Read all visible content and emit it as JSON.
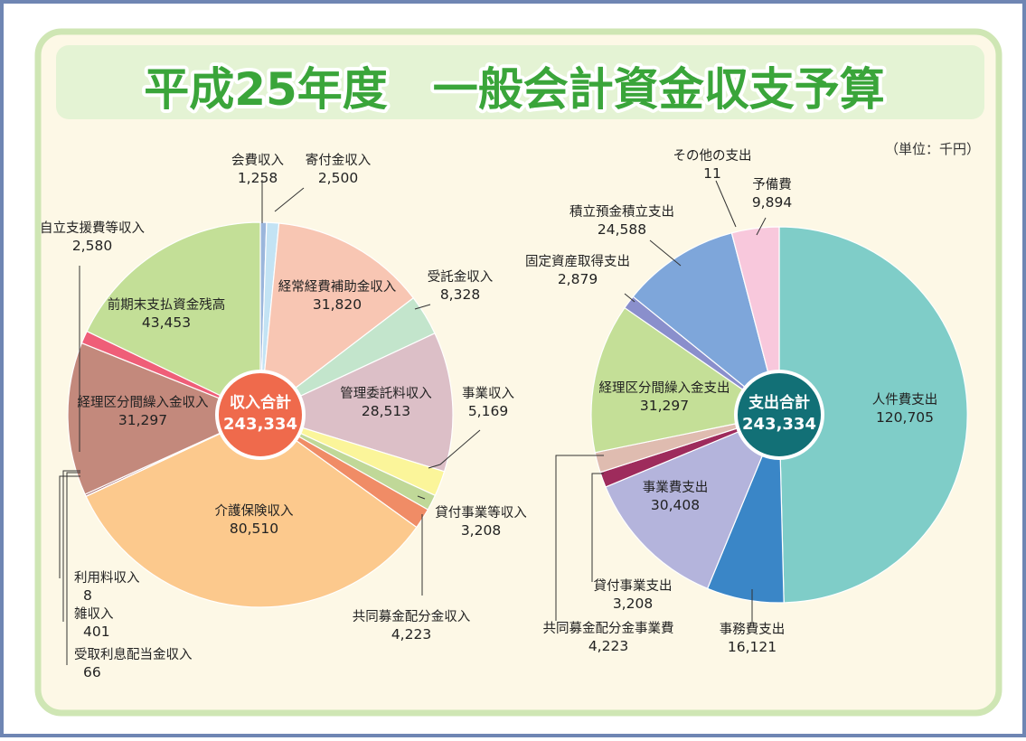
{
  "title": "平成25年度　一般会計資金収支予算",
  "unit": "（単位：千円）",
  "colors": {
    "panel_bg": "#fdf8e6",
    "panel_border": "#cfe6b4",
    "title_bar": "#e4f3d4",
    "title_text": "#3aa53a",
    "income_center": "#ef6a4c",
    "expense_center": "#127076"
  },
  "chart_data": [
    {
      "type": "pie",
      "id": "income",
      "center_label": "収入合計",
      "center_value": "243,334",
      "slices": [
        {
          "label": "会費収入",
          "value": 1258,
          "display": "1,258",
          "color": "#9bb6dc"
        },
        {
          "label": "寄付金収入",
          "value": 2500,
          "display": "2,500",
          "color": "#c3e3f4"
        },
        {
          "label": "経常経費補助金収入",
          "value": 31820,
          "display": "31,820",
          "color": "#f8c6b3"
        },
        {
          "label": "受託金収入",
          "value": 8328,
          "display": "8,328",
          "color": "#c3e5cc"
        },
        {
          "label": "管理委託料収入",
          "value": 28513,
          "display": "28,513",
          "color": "#dcbfc7"
        },
        {
          "label": "事業収入",
          "value": 5169,
          "display": "5,169",
          "color": "#fbf59a"
        },
        {
          "label": "貸付事業等収入",
          "value": 3208,
          "display": "3,208",
          "color": "#c0d898"
        },
        {
          "label": "共同募金配分金収入",
          "value": 4223,
          "display": "4,223",
          "color": "#f08c66"
        },
        {
          "label": "介護保険収入",
          "value": 80510,
          "display": "80,510",
          "color": "#fcc98d"
        },
        {
          "label": "受取利息配当金収入",
          "value": 66,
          "display": "66",
          "color": "#e8a0a8"
        },
        {
          "label": "雑収入",
          "value": 401,
          "display": "401",
          "color": "#9e5c62"
        },
        {
          "label": "利用料収入",
          "value": 8,
          "display": "8",
          "color": "#b78a8a"
        },
        {
          "label": "経理区分間繰入金収入",
          "value": 31297,
          "display": "31,297",
          "color": "#c3897c"
        },
        {
          "label": "自立支援費等収入",
          "value": 2580,
          "display": "2,580",
          "color": "#ef5e78"
        },
        {
          "label": "前期末支払資金残高",
          "value": 43453,
          "display": "43,453",
          "color": "#c3df97"
        }
      ]
    },
    {
      "type": "pie",
      "id": "expense",
      "center_label": "支出合計",
      "center_value": "243,334",
      "slices": [
        {
          "label": "人件費支出",
          "value": 120705,
          "display": "120,705",
          "color": "#7fcdc8"
        },
        {
          "label": "事務費支出",
          "value": 16121,
          "display": "16,121",
          "color": "#3a86c7"
        },
        {
          "label": "事業費支出",
          "value": 30408,
          "display": "30,408",
          "color": "#b4b4dc"
        },
        {
          "label": "貸付事業支出",
          "value": 3208,
          "display": "3,208",
          "color": "#9e2b5c"
        },
        {
          "label": "共同募金配分金事業費",
          "value": 4223,
          "display": "4,223",
          "color": "#dfbcb0"
        },
        {
          "label": "経理区分間繰入金支出",
          "value": 31297,
          "display": "31,297",
          "color": "#c4df97"
        },
        {
          "label": "固定資産取得支出",
          "value": 2879,
          "display": "2,879",
          "color": "#8a8fcc"
        },
        {
          "label": "積立預金積立支出",
          "value": 24588,
          "display": "24,588",
          "color": "#7ea6da"
        },
        {
          "label": "その他の支出",
          "value": 11,
          "display": "11",
          "color": "#9bb6dc"
        },
        {
          "label": "予備費",
          "value": 9894,
          "display": "9,894",
          "color": "#f8c8dc"
        }
      ]
    }
  ]
}
